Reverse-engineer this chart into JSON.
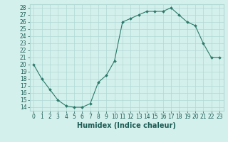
{
  "x": [
    0,
    1,
    2,
    3,
    4,
    5,
    6,
    7,
    8,
    9,
    10,
    11,
    12,
    13,
    14,
    15,
    16,
    17,
    18,
    19,
    20,
    21,
    22,
    23
  ],
  "y": [
    20,
    18,
    16.5,
    15,
    14.2,
    14,
    14,
    14.5,
    17.5,
    18.5,
    20.5,
    26,
    26.5,
    27,
    27.5,
    27.5,
    27.5,
    28,
    27,
    26,
    25.5,
    23,
    21,
    21
  ],
  "line_color": "#2a7a6a",
  "marker_color": "#2a7a6a",
  "bg_color": "#d4f0ec",
  "grid_color": "#b0d8d4",
  "xlabel": "Humidex (Indice chaleur)",
  "xlim": [
    -0.5,
    23.5
  ],
  "ylim": [
    13.5,
    28.5
  ],
  "yticks": [
    14,
    15,
    16,
    17,
    18,
    19,
    20,
    21,
    22,
    23,
    24,
    25,
    26,
    27,
    28
  ],
  "xticks": [
    0,
    1,
    2,
    3,
    4,
    5,
    6,
    7,
    8,
    9,
    10,
    11,
    12,
    13,
    14,
    15,
    16,
    17,
    18,
    19,
    20,
    21,
    22,
    23
  ],
  "tick_label_fontsize": 5.5,
  "xlabel_fontsize": 7.0,
  "marker_size": 2.0,
  "linewidth": 0.8
}
